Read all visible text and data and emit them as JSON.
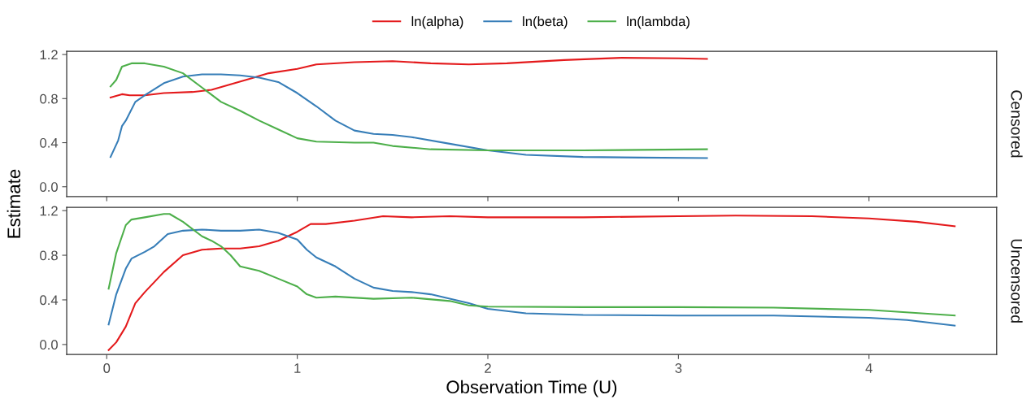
{
  "chart_data": [
    {
      "type": "line",
      "annotations": [
        "Censored"
      ],
      "ylabel": "Estimate",
      "legend": "top",
      "tick_labels": "y",
      "grid": false,
      "xlim": [
        -0.21,
        4.67
      ],
      "xticks": [
        0,
        1,
        2,
        3,
        4
      ],
      "ylim": [
        -0.09,
        1.23
      ],
      "yticks": [
        {
          "value": 0,
          "label": "0.0"
        },
        0.4,
        0.8,
        1.2
      ],
      "series": [
        {
          "name": "ln(alpha)",
          "color": "#e41a1c",
          "x": [
            0.02,
            0.08,
            0.12,
            0.2,
            0.3,
            0.45,
            0.55,
            0.65,
            0.75,
            0.85,
            1.0,
            1.1,
            1.3,
            1.5,
            1.7,
            1.9,
            2.1,
            2.4,
            2.7,
            3.0,
            3.15
          ],
          "values": [
            0.81,
            0.84,
            0.83,
            0.83,
            0.85,
            0.86,
            0.88,
            0.93,
            0.98,
            1.03,
            1.07,
            1.11,
            1.13,
            1.14,
            1.12,
            1.11,
            1.12,
            1.15,
            1.17,
            1.165,
            1.16
          ]
        },
        {
          "name": "ln(beta)",
          "color": "#377eb8",
          "x": [
            0.02,
            0.06,
            0.08,
            0.1,
            0.15,
            0.2,
            0.3,
            0.4,
            0.5,
            0.6,
            0.7,
            0.8,
            0.9,
            1.0,
            1.1,
            1.2,
            1.3,
            1.4,
            1.5,
            1.6,
            1.8,
            2.0,
            2.2,
            2.5,
            2.8,
            3.15
          ],
          "values": [
            0.27,
            0.42,
            0.55,
            0.6,
            0.77,
            0.83,
            0.94,
            1.0,
            1.02,
            1.02,
            1.01,
            0.99,
            0.95,
            0.85,
            0.73,
            0.6,
            0.51,
            0.48,
            0.47,
            0.45,
            0.39,
            0.33,
            0.29,
            0.27,
            0.265,
            0.26
          ]
        },
        {
          "name": "ln(lambda)",
          "color": "#4daf4a",
          "x": [
            0.02,
            0.05,
            0.08,
            0.13,
            0.2,
            0.3,
            0.4,
            0.5,
            0.6,
            0.7,
            0.8,
            0.9,
            1.0,
            1.1,
            1.3,
            1.4,
            1.5,
            1.7,
            2.0,
            2.5,
            3.15
          ],
          "values": [
            0.91,
            0.97,
            1.09,
            1.12,
            1.12,
            1.09,
            1.03,
            0.9,
            0.77,
            0.69,
            0.6,
            0.52,
            0.44,
            0.41,
            0.4,
            0.4,
            0.37,
            0.34,
            0.33,
            0.33,
            0.34
          ]
        }
      ]
    },
    {
      "type": "line",
      "annotations": [
        "Uncensored"
      ],
      "xlabel": "Observation Time (U)",
      "grid": false,
      "xlim": [
        -0.21,
        4.67
      ],
      "xticks": [
        0,
        1,
        2,
        3,
        4
      ],
      "ylim": [
        -0.09,
        1.23
      ],
      "yticks": [
        {
          "value": 0,
          "label": "0.0"
        },
        0.4,
        0.8,
        1.2
      ],
      "series": [
        {
          "color": "#e41a1c",
          "x": [
            0.01,
            0.05,
            0.1,
            0.15,
            0.2,
            0.3,
            0.4,
            0.5,
            0.6,
            0.7,
            0.8,
            0.9,
            1.0,
            1.07,
            1.15,
            1.3,
            1.45,
            1.6,
            1.8,
            2.0,
            2.5,
            3.0,
            3.3,
            3.7,
            4.0,
            4.25,
            4.45
          ],
          "values": [
            -0.05,
            0.02,
            0.16,
            0.37,
            0.47,
            0.65,
            0.8,
            0.85,
            0.86,
            0.86,
            0.88,
            0.93,
            1.01,
            1.08,
            1.08,
            1.11,
            1.15,
            1.14,
            1.15,
            1.14,
            1.14,
            1.15,
            1.155,
            1.15,
            1.13,
            1.1,
            1.06
          ]
        },
        {
          "color": "#377eb8",
          "x": [
            0.01,
            0.05,
            0.1,
            0.13,
            0.2,
            0.25,
            0.32,
            0.4,
            0.5,
            0.6,
            0.7,
            0.8,
            0.9,
            1.0,
            1.05,
            1.1,
            1.2,
            1.3,
            1.4,
            1.5,
            1.6,
            1.7,
            1.8,
            1.9,
            2.0,
            2.2,
            2.5,
            3.0,
            3.5,
            4.0,
            4.2,
            4.45
          ],
          "values": [
            0.18,
            0.45,
            0.68,
            0.77,
            0.83,
            0.88,
            0.99,
            1.02,
            1.03,
            1.02,
            1.02,
            1.03,
            1.0,
            0.94,
            0.85,
            0.78,
            0.7,
            0.59,
            0.51,
            0.48,
            0.47,
            0.45,
            0.41,
            0.37,
            0.32,
            0.28,
            0.265,
            0.26,
            0.26,
            0.24,
            0.22,
            0.17
          ]
        },
        {
          "color": "#4daf4a",
          "x": [
            0.01,
            0.05,
            0.1,
            0.13,
            0.2,
            0.3,
            0.33,
            0.4,
            0.5,
            0.55,
            0.6,
            0.65,
            0.7,
            0.8,
            0.9,
            1.0,
            1.05,
            1.1,
            1.2,
            1.4,
            1.6,
            1.8,
            1.9,
            2.0,
            2.5,
            3.0,
            3.5,
            4.0,
            4.45
          ],
          "values": [
            0.5,
            0.82,
            1.07,
            1.12,
            1.14,
            1.17,
            1.17,
            1.1,
            0.97,
            0.93,
            0.88,
            0.8,
            0.7,
            0.66,
            0.59,
            0.52,
            0.45,
            0.42,
            0.43,
            0.41,
            0.42,
            0.39,
            0.35,
            0.34,
            0.335,
            0.335,
            0.33,
            0.31,
            0.26
          ]
        }
      ]
    }
  ]
}
